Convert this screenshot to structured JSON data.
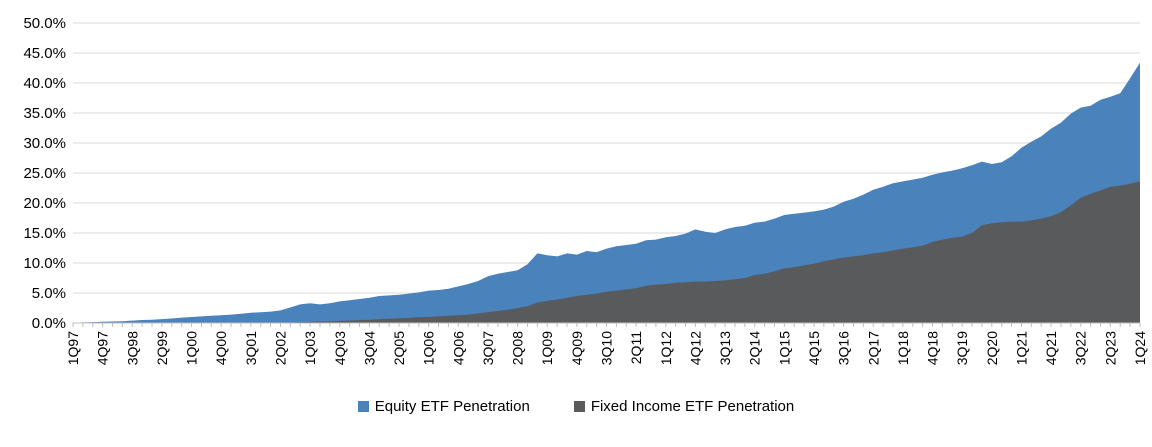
{
  "chart_data": {
    "type": "area",
    "mode": "overlapping",
    "title": "",
    "xlabel": "",
    "ylabel": "",
    "ylim": [
      0,
      50
    ],
    "grid": true,
    "legend_position": "bottom",
    "y_ticks": [
      "50.0%",
      "45.0%",
      "40.0%",
      "35.0%",
      "30.0%",
      "25.0%",
      "20.0%",
      "15.0%",
      "10.0%",
      "5.0%",
      "0.0%"
    ],
    "x_label_interval": 3,
    "x_tick_labels": [
      "1Q97",
      "4Q97",
      "3Q98",
      "2Q99",
      "1Q00",
      "4Q00",
      "3Q01",
      "2Q02",
      "1Q03",
      "4Q03",
      "3Q04",
      "2Q05",
      "1Q06",
      "4Q06",
      "3Q07",
      "2Q08",
      "1Q09",
      "4Q09",
      "3Q10",
      "2Q11",
      "1Q12",
      "4Q12",
      "3Q13",
      "2Q14",
      "1Q15",
      "4Q15",
      "3Q16",
      "2Q17",
      "1Q18",
      "4Q18",
      "3Q19",
      "2Q20",
      "1Q21",
      "4Q21",
      "3Q22",
      "2Q23",
      "1Q24"
    ],
    "categories": [
      "1Q97",
      "2Q97",
      "3Q97",
      "4Q97",
      "1Q98",
      "2Q98",
      "3Q98",
      "4Q98",
      "1Q99",
      "2Q99",
      "3Q99",
      "4Q99",
      "1Q00",
      "2Q00",
      "3Q00",
      "4Q00",
      "1Q01",
      "2Q01",
      "3Q01",
      "4Q01",
      "1Q02",
      "2Q02",
      "3Q02",
      "4Q02",
      "1Q03",
      "2Q03",
      "3Q03",
      "4Q03",
      "1Q04",
      "2Q04",
      "3Q04",
      "4Q04",
      "1Q05",
      "2Q05",
      "3Q05",
      "4Q05",
      "1Q06",
      "2Q06",
      "3Q06",
      "4Q06",
      "1Q07",
      "2Q07",
      "3Q07",
      "4Q07",
      "1Q08",
      "2Q08",
      "3Q08",
      "4Q08",
      "1Q09",
      "2Q09",
      "3Q09",
      "4Q09",
      "1Q10",
      "2Q10",
      "3Q10",
      "4Q10",
      "1Q11",
      "2Q11",
      "3Q11",
      "4Q11",
      "1Q12",
      "2Q12",
      "3Q12",
      "4Q12",
      "1Q13",
      "2Q13",
      "3Q13",
      "4Q13",
      "1Q14",
      "2Q14",
      "3Q14",
      "4Q14",
      "1Q15",
      "2Q15",
      "3Q15",
      "4Q15",
      "1Q16",
      "2Q16",
      "3Q16",
      "4Q16",
      "1Q17",
      "2Q17",
      "3Q17",
      "4Q17",
      "1Q18",
      "2Q18",
      "3Q18",
      "4Q18",
      "1Q19",
      "2Q19",
      "3Q19",
      "4Q19",
      "1Q20",
      "2Q20",
      "3Q20",
      "4Q20",
      "1Q21",
      "2Q21",
      "3Q21",
      "4Q21",
      "1Q22",
      "2Q22",
      "3Q22",
      "4Q22",
      "1Q23",
      "2Q23",
      "3Q23",
      "4Q23",
      "1Q24"
    ],
    "series": [
      {
        "name": "Equity ETF Penetration",
        "color": "#4A82BC",
        "values": [
          0.05,
          0.1,
          0.15,
          0.2,
          0.25,
          0.3,
          0.4,
          0.5,
          0.55,
          0.65,
          0.75,
          0.9,
          1.0,
          1.1,
          1.2,
          1.3,
          1.4,
          1.55,
          1.7,
          1.8,
          1.9,
          2.1,
          2.6,
          3.1,
          3.3,
          3.1,
          3.3,
          3.6,
          3.8,
          4.0,
          4.2,
          4.5,
          4.6,
          4.7,
          4.9,
          5.1,
          5.4,
          5.5,
          5.7,
          6.1,
          6.5,
          7.0,
          7.8,
          8.2,
          8.5,
          8.8,
          9.8,
          11.6,
          11.3,
          11.1,
          11.6,
          11.4,
          12.0,
          11.8,
          12.4,
          12.8,
          13.0,
          13.2,
          13.8,
          13.9,
          14.3,
          14.5,
          14.9,
          15.6,
          15.2,
          15.0,
          15.6,
          16.0,
          16.2,
          16.7,
          16.9,
          17.4,
          18.0,
          18.2,
          18.4,
          18.6,
          18.9,
          19.4,
          20.2,
          20.7,
          21.4,
          22.2,
          22.7,
          23.3,
          23.6,
          23.9,
          24.2,
          24.7,
          25.1,
          25.4,
          25.8,
          26.3,
          26.9,
          26.5,
          26.8,
          27.8,
          29.2,
          30.2,
          31.1,
          32.4,
          33.4,
          34.9,
          35.9,
          36.2,
          37.2,
          37.7,
          38.3,
          40.8,
          43.4
        ]
      },
      {
        "name": "Fixed Income ETF Penetration",
        "color": "#595A5C",
        "values": [
          0,
          0,
          0,
          0,
          0,
          0,
          0,
          0,
          0,
          0,
          0,
          0,
          0,
          0,
          0,
          0,
          0,
          0,
          0,
          0,
          0,
          0.05,
          0.1,
          0.15,
          0.2,
          0.25,
          0.3,
          0.35,
          0.4,
          0.5,
          0.55,
          0.65,
          0.7,
          0.8,
          0.85,
          0.95,
          1.0,
          1.1,
          1.2,
          1.3,
          1.4,
          1.6,
          1.8,
          2.0,
          2.2,
          2.5,
          2.8,
          3.4,
          3.7,
          3.9,
          4.2,
          4.5,
          4.7,
          4.9,
          5.2,
          5.4,
          5.6,
          5.8,
          6.2,
          6.4,
          6.5,
          6.7,
          6.8,
          6.9,
          6.9,
          7.0,
          7.1,
          7.3,
          7.5,
          8.0,
          8.2,
          8.6,
          9.1,
          9.3,
          9.6,
          9.9,
          10.3,
          10.6,
          10.9,
          11.1,
          11.3,
          11.6,
          11.8,
          12.1,
          12.4,
          12.6,
          12.9,
          13.5,
          13.9,
          14.2,
          14.4,
          15.0,
          16.3,
          16.6,
          16.8,
          16.9,
          16.9,
          17.1,
          17.4,
          17.8,
          18.5,
          19.6,
          20.9,
          21.5,
          22.1,
          22.7,
          22.9,
          23.2,
          23.6
        ]
      }
    ]
  },
  "style": {
    "gridline_color": "#D9D9D9",
    "axis_color": "#BFBFBF",
    "text_color": "#000000",
    "background": "#FFFFFF"
  },
  "legend": {
    "equity_label": "Equity ETF Penetration",
    "fixed_income_label": "Fixed Income ETF Penetration"
  }
}
